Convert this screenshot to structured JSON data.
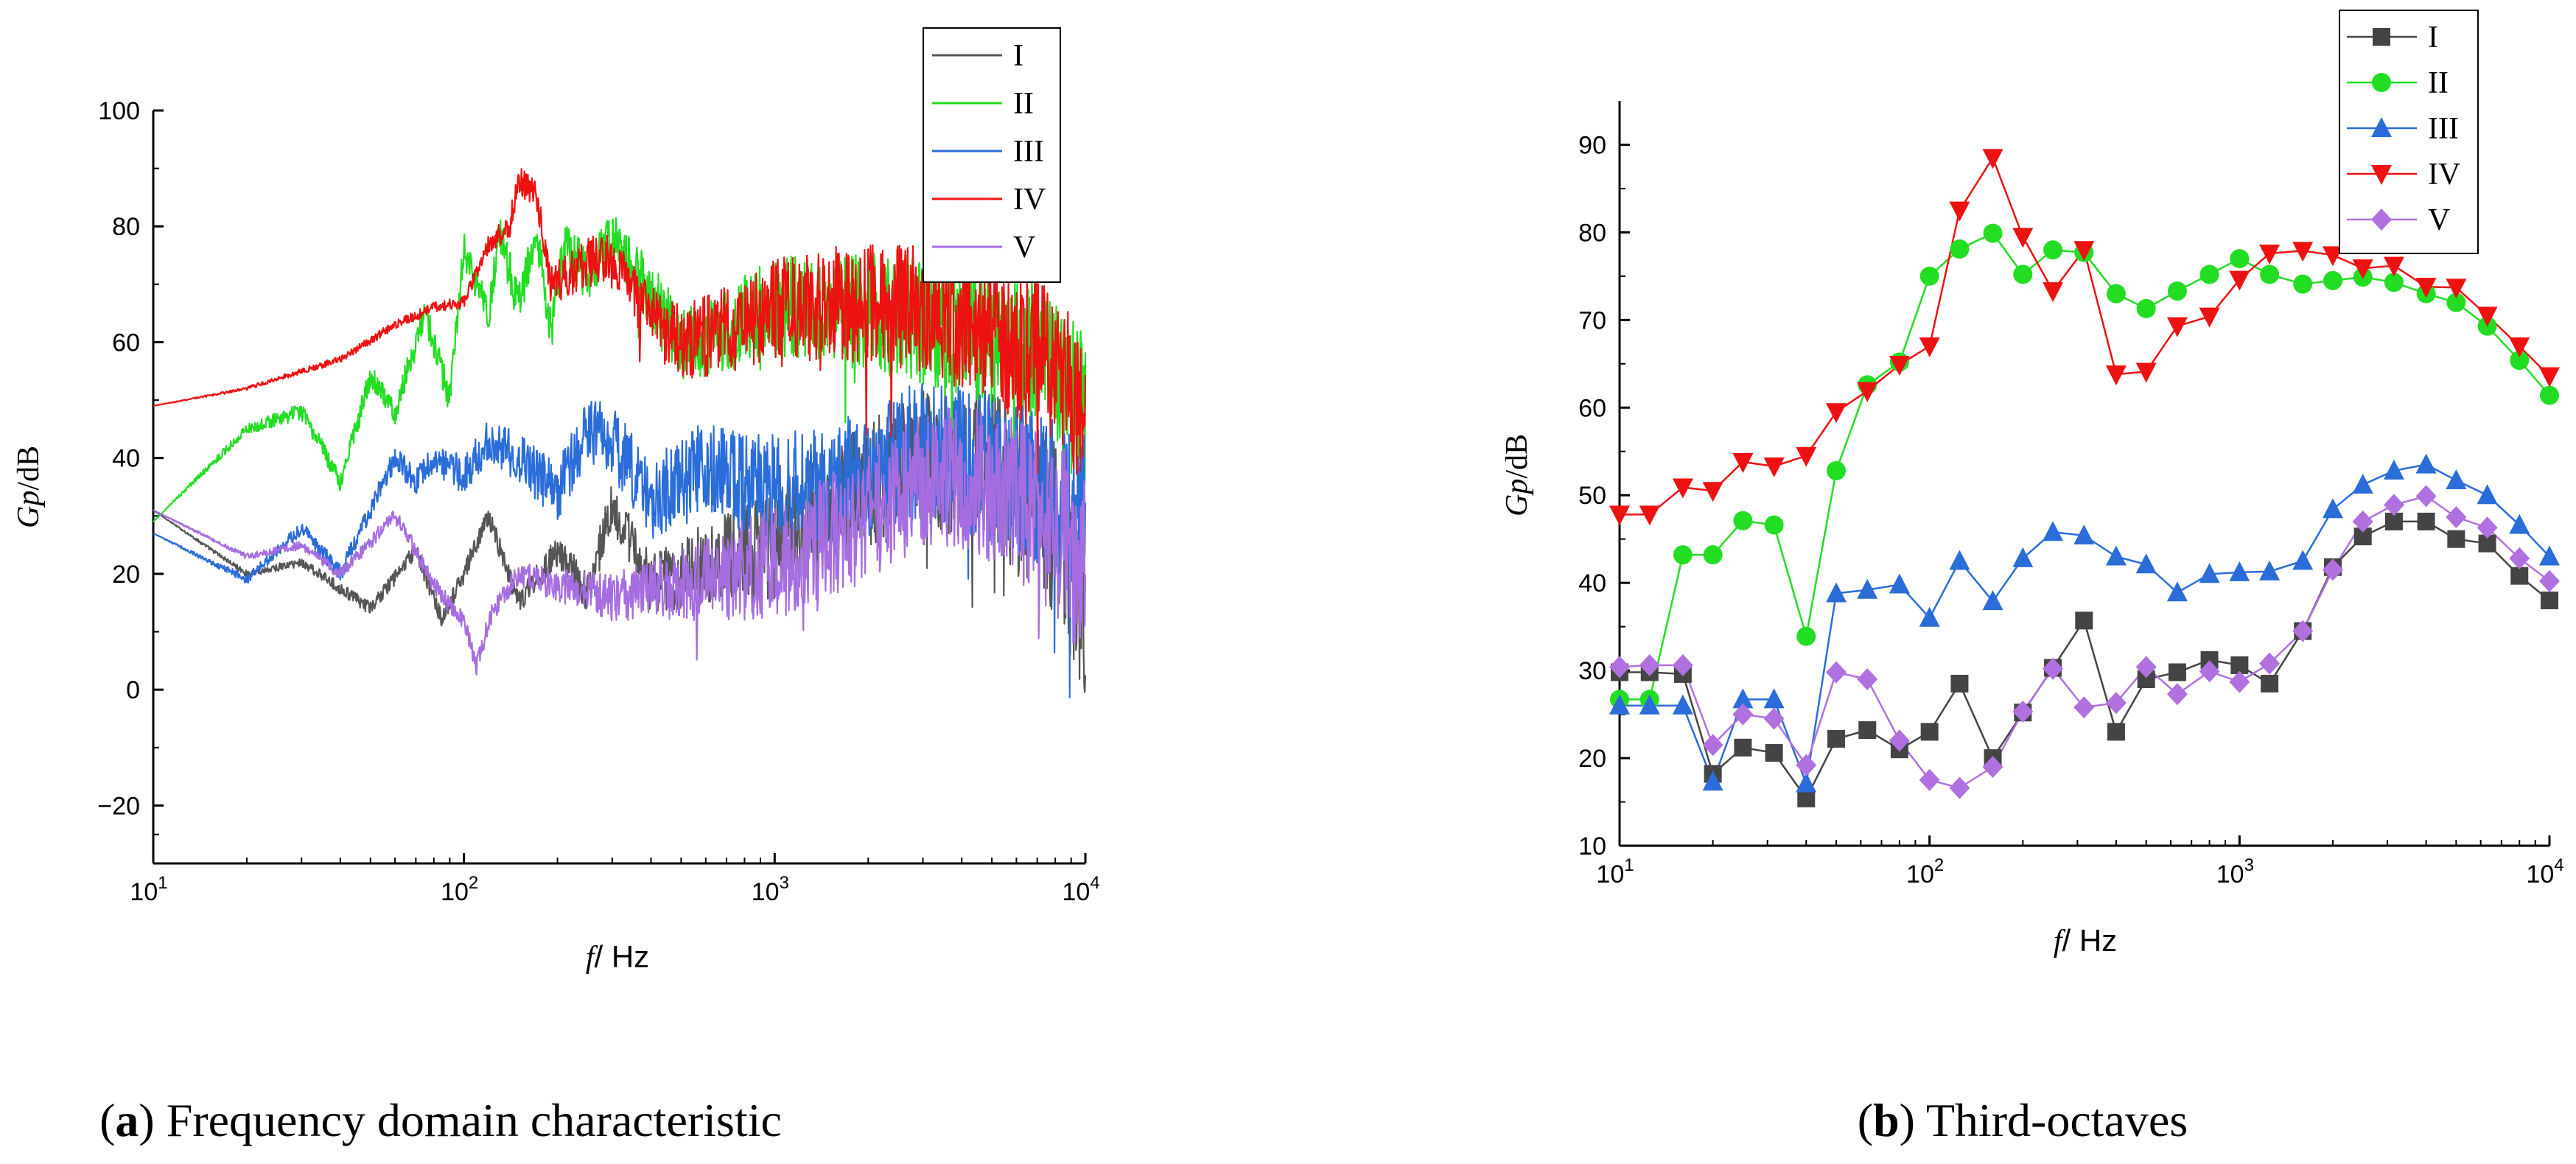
{
  "chart_data": [
    {
      "type": "line",
      "caption_label": "a",
      "caption_text": "Frequency domain characteristic",
      "xlabel_var": "f",
      "xlabel_unit": "/ Hz",
      "ylabel_var": "Gp",
      "ylabel_unit": "/dB",
      "xscale": "log",
      "xlim": [
        10,
        10000
      ],
      "ylim": [
        -30,
        100
      ],
      "xticks": [
        10,
        100,
        1000,
        10000
      ],
      "xtick_labels": [
        {
          "base": "10",
          "exp": "1"
        },
        {
          "base": "10",
          "exp": "2"
        },
        {
          "base": "10",
          "exp": "3"
        },
        {
          "base": "10",
          "exp": "4"
        }
      ],
      "yticks": [
        -20,
        0,
        20,
        40,
        60,
        80,
        100
      ],
      "ytick_labels": [
        "−20",
        "0",
        "20",
        "40",
        "60",
        "80",
        "100"
      ],
      "legend_position": "top-right",
      "series": [
        {
          "name": "I",
          "color": "#555555",
          "anchors": [
            [
              10,
              31
            ],
            [
              20,
              20
            ],
            [
              30,
              22
            ],
            [
              50,
              14
            ],
            [
              70,
              24
            ],
            [
              85,
              12
            ],
            [
              100,
              20
            ],
            [
              120,
              30
            ],
            [
              150,
              15
            ],
            [
              200,
              24
            ],
            [
              250,
              17
            ],
            [
              300,
              32
            ],
            [
              400,
              18
            ],
            [
              600,
              22
            ],
            [
              1000,
              25
            ],
            [
              2000,
              35
            ],
            [
              3000,
              40
            ],
            [
              5000,
              38
            ],
            [
              8000,
              28
            ],
            [
              10000,
              15
            ]
          ],
          "noise": [
            [
              10,
              0
            ],
            [
              150,
              2
            ],
            [
              400,
              5
            ],
            [
              1000,
              10
            ],
            [
              3000,
              12
            ],
            [
              10000,
              16
            ]
          ]
        },
        {
          "name": "II",
          "color": "#22dd22",
          "anchors": [
            [
              10,
              29
            ],
            [
              20,
              45
            ],
            [
              30,
              48
            ],
            [
              40,
              36
            ],
            [
              50,
              54
            ],
            [
              60,
              48
            ],
            [
              75,
              65
            ],
            [
              90,
              50
            ],
            [
              100,
              76
            ],
            [
              120,
              65
            ],
            [
              130,
              79
            ],
            [
              150,
              66
            ],
            [
              170,
              79
            ],
            [
              190,
              62
            ],
            [
              210,
              76
            ],
            [
              250,
              72
            ],
            [
              300,
              78
            ],
            [
              400,
              68
            ],
            [
              500,
              60
            ],
            [
              700,
              62
            ],
            [
              1000,
              66
            ],
            [
              2000,
              65
            ],
            [
              4000,
              63
            ],
            [
              7000,
              58
            ],
            [
              10000,
              48
            ]
          ],
          "noise": [
            [
              10,
              0
            ],
            [
              100,
              3
            ],
            [
              300,
              5
            ],
            [
              600,
              7
            ],
            [
              1500,
              10
            ],
            [
              4000,
              12
            ],
            [
              10000,
              14
            ]
          ]
        },
        {
          "name": "III",
          "color": "#2a6dd9",
          "anchors": [
            [
              10,
              27
            ],
            [
              20,
              19
            ],
            [
              30,
              28
            ],
            [
              40,
              20
            ],
            [
              60,
              40
            ],
            [
              70,
              36
            ],
            [
              80,
              40
            ],
            [
              100,
              37
            ],
            [
              120,
              43
            ],
            [
              150,
              40
            ],
            [
              200,
              34
            ],
            [
              250,
              45
            ],
            [
              300,
              43
            ],
            [
              400,
              33
            ],
            [
              600,
              38
            ],
            [
              1000,
              34
            ],
            [
              2000,
              37
            ],
            [
              3000,
              42
            ],
            [
              5000,
              38
            ],
            [
              8000,
              34
            ],
            [
              10000,
              30
            ]
          ],
          "noise": [
            [
              10,
              0
            ],
            [
              60,
              2
            ],
            [
              200,
              5
            ],
            [
              1000,
              10
            ],
            [
              3000,
              12
            ],
            [
              10000,
              14
            ]
          ]
        },
        {
          "name": "IV",
          "color": "#ee1111",
          "anchors": [
            [
              10,
              49
            ],
            [
              20,
              52
            ],
            [
              30,
              55
            ],
            [
              40,
              57
            ],
            [
              60,
              63
            ],
            [
              80,
              66
            ],
            [
              100,
              67
            ],
            [
              120,
              77
            ],
            [
              140,
              80
            ],
            [
              150,
              88
            ],
            [
              170,
              86
            ],
            [
              190,
              70
            ],
            [
              210,
              71
            ],
            [
              250,
              74
            ],
            [
              300,
              74
            ],
            [
              400,
              64
            ],
            [
              500,
              60
            ],
            [
              700,
              62
            ],
            [
              1000,
              66
            ],
            [
              2000,
              67
            ],
            [
              4000,
              64
            ],
            [
              7000,
              58
            ],
            [
              10000,
              48
            ]
          ],
          "noise": [
            [
              10,
              0
            ],
            [
              100,
              1
            ],
            [
              300,
              5
            ],
            [
              600,
              7
            ],
            [
              1500,
              10
            ],
            [
              4000,
              12
            ],
            [
              10000,
              14
            ]
          ]
        },
        {
          "name": "V",
          "color": "#a66de0",
          "anchors": [
            [
              10,
              31
            ],
            [
              20,
              23
            ],
            [
              30,
              25
            ],
            [
              40,
              20
            ],
            [
              60,
              30
            ],
            [
              70,
              24
            ],
            [
              80,
              18
            ],
            [
              100,
              12
            ],
            [
              110,
              4
            ],
            [
              120,
              12
            ],
            [
              150,
              20
            ],
            [
              200,
              18
            ],
            [
              300,
              16
            ],
            [
              500,
              18
            ],
            [
              1000,
              22
            ],
            [
              2000,
              30
            ],
            [
              3000,
              37
            ],
            [
              5000,
              35
            ],
            [
              8000,
              28
            ],
            [
              10000,
              22
            ]
          ],
          "noise": [
            [
              10,
              0
            ],
            [
              150,
              2
            ],
            [
              400,
              5
            ],
            [
              1000,
              10
            ],
            [
              3000,
              12
            ],
            [
              10000,
              16
            ]
          ]
        }
      ]
    },
    {
      "type": "line",
      "caption_label": "b",
      "caption_text": "Third-octaves",
      "xlabel_var": "f",
      "xlabel_unit": "/ Hz",
      "ylabel_var": "Gp",
      "ylabel_unit": "/dB",
      "xscale": "log",
      "xlim": [
        10,
        10000
      ],
      "ylim": [
        10,
        95
      ],
      "xticks": [
        10,
        100,
        1000,
        10000
      ],
      "xtick_labels": [
        {
          "base": "10",
          "exp": "1"
        },
        {
          "base": "10",
          "exp": "2"
        },
        {
          "base": "10",
          "exp": "3"
        },
        {
          "base": "10",
          "exp": "4"
        }
      ],
      "yticks": [
        10,
        20,
        30,
        40,
        50,
        60,
        70,
        80,
        90
      ],
      "ytick_labels": [
        "10",
        "20",
        "30",
        "40",
        "50",
        "60",
        "70",
        "80",
        "90"
      ],
      "legend_position": "top-right",
      "x": [
        10,
        12.5,
        16,
        20,
        25,
        31.5,
        40,
        50,
        63,
        80,
        100,
        125,
        160,
        200,
        250,
        315,
        400,
        500,
        630,
        800,
        1000,
        1250,
        1600,
        2000,
        2500,
        3150,
        4000,
        5000,
        6300,
        8000,
        10000
      ],
      "series": [
        {
          "name": "I",
          "color": "#444444",
          "marker": "square",
          "values": [
            29.8,
            29.8,
            29.6,
            18.2,
            21.2,
            20.6,
            15.4,
            22.2,
            23.2,
            21.0,
            23.0,
            28.5,
            20.0,
            25.2,
            30.3,
            35.7,
            23.0,
            29.0,
            29.8,
            31.2,
            30.6,
            28.5,
            34.5,
            41.8,
            45.3,
            47.0,
            47.0,
            45.0,
            44.5,
            40.8,
            38.0
          ]
        },
        {
          "name": "II",
          "color": "#22dd22",
          "marker": "circle",
          "values": [
            26.7,
            26.7,
            43.2,
            43.2,
            47.1,
            46.6,
            33.9,
            52.8,
            62.6,
            65.2,
            75.0,
            78.1,
            79.9,
            75.2,
            78.0,
            77.7,
            73.0,
            71.3,
            73.3,
            75.2,
            77.0,
            75.2,
            74.1,
            74.5,
            74.9,
            74.3,
            73.0,
            72.0,
            69.3,
            65.4,
            61.4
          ]
        },
        {
          "name": "III",
          "color": "#2a6dd9",
          "marker": "triangle-up",
          "values": [
            26.0,
            26.0,
            26.0,
            17.3,
            26.7,
            26.7,
            17.1,
            38.8,
            39.2,
            39.8,
            36.0,
            42.5,
            37.9,
            42.8,
            45.8,
            45.4,
            43.0,
            42.1,
            38.9,
            41.0,
            41.2,
            41.3,
            42.5,
            48.4,
            51.2,
            52.8,
            53.5,
            51.7,
            50.0,
            46.6,
            43.0
          ]
        },
        {
          "name": "IV",
          "color": "#ee1111",
          "marker": "triangle-down",
          "values": [
            47.8,
            47.8,
            50.9,
            50.5,
            53.8,
            53.3,
            54.5,
            59.5,
            61.9,
            64.9,
            67.0,
            82.5,
            88.5,
            79.5,
            73.3,
            78.0,
            63.8,
            64.1,
            69.3,
            70.4,
            74.6,
            77.6,
            77.9,
            77.4,
            75.9,
            76.2,
            73.8,
            73.7,
            70.5,
            67.0,
            63.6
          ]
        },
        {
          "name": "V",
          "color": "#b070e0",
          "marker": "diamond",
          "values": [
            30.4,
            30.6,
            30.6,
            21.5,
            25.0,
            24.5,
            19.2,
            29.8,
            29.0,
            22.0,
            17.5,
            16.6,
            19.0,
            25.3,
            30.2,
            25.8,
            26.3,
            30.4,
            27.3,
            29.9,
            28.7,
            30.8,
            34.5,
            41.5,
            47.0,
            48.9,
            49.9,
            47.5,
            46.3,
            42.8,
            40.2
          ]
        }
      ]
    }
  ]
}
